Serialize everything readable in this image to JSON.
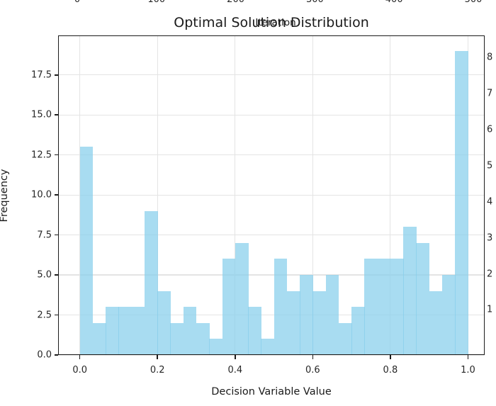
{
  "figure": {
    "title": "Optimal Solution Distribution",
    "top_axis": {
      "axis_label": "Iteration",
      "tick_labels": [
        "0",
        "100",
        "200",
        "300",
        "400",
        "500"
      ]
    },
    "right_axis": {
      "tick_labels": [
        "8",
        "7",
        "6",
        "5",
        "4",
        "3",
        "2",
        "1"
      ]
    },
    "colors": {
      "bar_fill": "#87ceeb",
      "grid": "#e4e4e4",
      "spine": "#1c1c1c",
      "text": "#262626"
    }
  },
  "chart_data": {
    "type": "bar",
    "subtype": "histogram",
    "title": "Optimal Solution Distribution",
    "xlabel": "Decision Variable Value",
    "ylabel": "Frequency",
    "bins": 30,
    "bin_range": [
      0.0,
      1.0
    ],
    "counts": [
      13,
      2,
      3,
      3,
      3,
      9,
      4,
      2,
      3,
      2,
      1,
      6,
      7,
      3,
      1,
      6,
      4,
      5,
      4,
      5,
      2,
      3,
      6,
      6,
      6,
      8,
      7,
      4,
      5,
      19
    ],
    "x_tick_values": [
      0.0,
      0.2,
      0.4,
      0.6,
      0.8,
      1.0
    ],
    "x_tick_labels": [
      "0.0",
      "0.2",
      "0.4",
      "0.6",
      "0.8",
      "1.0"
    ],
    "y_tick_values": [
      0.0,
      2.5,
      5.0,
      7.5,
      10.0,
      12.5,
      15.0,
      17.5
    ],
    "y_tick_labels": [
      "0.0",
      "2.5",
      "5.0",
      "7.5",
      "10.0",
      "12.5",
      "15.0",
      "17.5"
    ],
    "xlim": [
      -0.056,
      1.043
    ],
    "ylim": [
      0,
      19.97
    ],
    "grid": true,
    "legend_position": "none",
    "bar_color": "#87ceeb",
    "bar_alpha": 0.72
  }
}
